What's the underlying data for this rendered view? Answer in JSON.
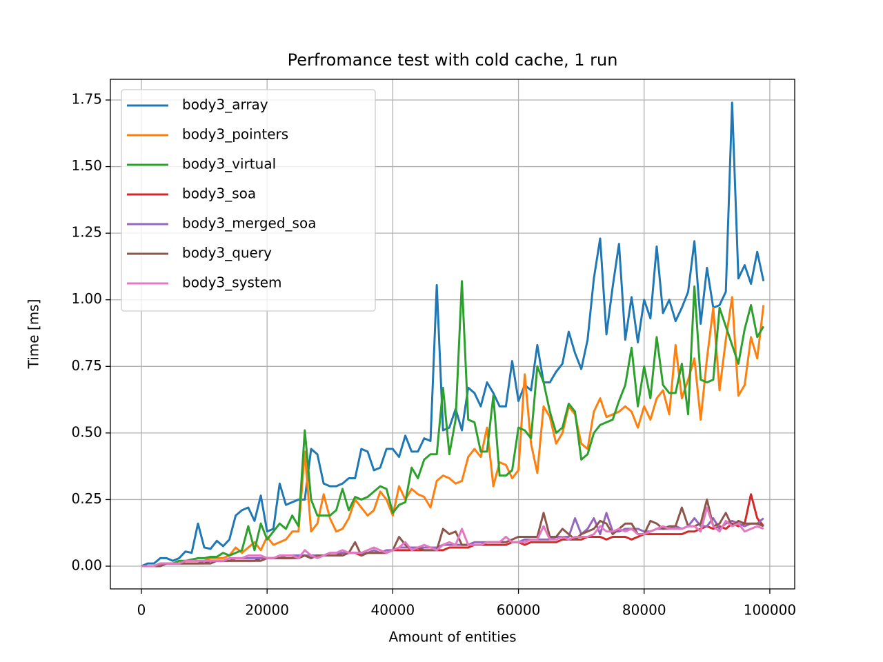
{
  "chart_data": {
    "type": "line",
    "title": "Perfromance test with cold cache, 1 run",
    "x_label": "Amount of entities",
    "y_label": "Time [ms]",
    "x": [
      0,
      1000,
      2000,
      3000,
      4000,
      5000,
      6000,
      7000,
      8000,
      9000,
      10000,
      11000,
      12000,
      13000,
      14000,
      15000,
      16000,
      17000,
      18000,
      19000,
      20000,
      21000,
      22000,
      23000,
      24000,
      25000,
      26000,
      27000,
      28000,
      29000,
      30000,
      31000,
      32000,
      33000,
      34000,
      35000,
      36000,
      37000,
      38000,
      39000,
      40000,
      41000,
      42000,
      43000,
      44000,
      45000,
      46000,
      47000,
      48000,
      49000,
      50000,
      51000,
      52000,
      53000,
      54000,
      55000,
      56000,
      57000,
      58000,
      59000,
      60000,
      61000,
      62000,
      63000,
      64000,
      65000,
      66000,
      67000,
      68000,
      69000,
      70000,
      71000,
      72000,
      73000,
      74000,
      75000,
      76000,
      77000,
      78000,
      79000,
      80000,
      81000,
      82000,
      83000,
      84000,
      85000,
      86000,
      87000,
      88000,
      89000,
      90000,
      91000,
      92000,
      93000,
      94000,
      95000,
      96000,
      97000,
      98000,
      99000
    ],
    "series": [
      {
        "name": "body3_array",
        "color": "#1f77b4",
        "values": [
          0,
          0.01,
          0.01,
          0.03,
          0.03,
          0.02,
          0.03,
          0.055,
          0.05,
          0.16,
          0.07,
          0.065,
          0.095,
          0.075,
          0.1,
          0.19,
          0.21,
          0.22,
          0.17,
          0.265,
          0.13,
          0.14,
          0.31,
          0.23,
          0.24,
          0.25,
          0.25,
          0.44,
          0.42,
          0.31,
          0.3,
          0.3,
          0.31,
          0.33,
          0.33,
          0.44,
          0.43,
          0.36,
          0.37,
          0.44,
          0.44,
          0.41,
          0.49,
          0.43,
          0.43,
          0.48,
          0.47,
          1.055,
          0.51,
          0.52,
          0.59,
          0.51,
          0.67,
          0.65,
          0.6,
          0.69,
          0.65,
          0.6,
          0.6,
          0.77,
          0.62,
          0.68,
          0.66,
          0.83,
          0.69,
          0.69,
          0.73,
          0.76,
          0.88,
          0.8,
          0.74,
          0.85,
          1.08,
          1.23,
          0.87,
          1.05,
          1.21,
          0.85,
          1.01,
          0.84,
          1.0,
          0.93,
          1.2,
          0.95,
          1.0,
          0.92,
          0.97,
          1.03,
          1.22,
          0.91,
          1.12,
          0.97,
          0.98,
          1.03,
          1.74,
          1.08,
          1.13,
          1.06,
          1.18,
          1.07
        ]
      },
      {
        "name": "body3_pointers",
        "color": "#ff7f0e",
        "values": [
          0,
          0,
          0,
          0.01,
          0.01,
          0.01,
          0.01,
          0.02,
          0.02,
          0.02,
          0.02,
          0.03,
          0.03,
          0.03,
          0.04,
          0.07,
          0.05,
          0.07,
          0.09,
          0.06,
          0.11,
          0.08,
          0.09,
          0.1,
          0.13,
          0.13,
          0.43,
          0.13,
          0.16,
          0.27,
          0.18,
          0.13,
          0.14,
          0.18,
          0.25,
          0.22,
          0.19,
          0.21,
          0.28,
          0.25,
          0.19,
          0.3,
          0.25,
          0.29,
          0.27,
          0.26,
          0.22,
          0.32,
          0.34,
          0.33,
          0.31,
          0.32,
          0.41,
          0.44,
          0.41,
          0.52,
          0.3,
          0.39,
          0.38,
          0.33,
          0.36,
          0.72,
          0.46,
          0.35,
          0.6,
          0.56,
          0.46,
          0.5,
          0.6,
          0.57,
          0.46,
          0.44,
          0.58,
          0.63,
          0.56,
          0.57,
          0.58,
          0.6,
          0.58,
          0.52,
          0.6,
          0.55,
          0.63,
          0.66,
          0.57,
          0.83,
          0.63,
          0.7,
          0.78,
          0.55,
          0.78,
          0.97,
          0.66,
          0.85,
          1.01,
          0.64,
          0.68,
          0.86,
          0.78,
          0.98
        ]
      },
      {
        "name": "body3_virtual",
        "color": "#2ca02c",
        "values": [
          0,
          0,
          0,
          0.01,
          0.01,
          0.01,
          0.02,
          0.02,
          0.025,
          0.03,
          0.03,
          0.035,
          0.035,
          0.05,
          0.04,
          0.05,
          0.06,
          0.15,
          0.06,
          0.16,
          0.1,
          0.13,
          0.16,
          0.14,
          0.19,
          0.15,
          0.51,
          0.25,
          0.19,
          0.19,
          0.19,
          0.21,
          0.29,
          0.21,
          0.26,
          0.25,
          0.26,
          0.28,
          0.3,
          0.29,
          0.2,
          0.23,
          0.24,
          0.37,
          0.33,
          0.4,
          0.42,
          0.42,
          0.67,
          0.42,
          0.55,
          1.07,
          0.55,
          0.54,
          0.43,
          0.43,
          0.64,
          0.34,
          0.34,
          0.36,
          0.52,
          0.51,
          0.48,
          0.75,
          0.69,
          0.58,
          0.5,
          0.52,
          0.61,
          0.58,
          0.4,
          0.42,
          0.5,
          0.53,
          0.54,
          0.55,
          0.62,
          0.68,
          0.82,
          0.6,
          0.75,
          0.63,
          0.86,
          0.68,
          0.65,
          0.65,
          0.76,
          0.57,
          1.05,
          0.7,
          0.69,
          0.7,
          0.97,
          0.9,
          0.83,
          0.76,
          0.89,
          0.98,
          0.86,
          0.9
        ]
      },
      {
        "name": "body3_soa",
        "color": "#d62728",
        "values": [
          0,
          0,
          0,
          0.01,
          0.01,
          0.01,
          0.01,
          0.01,
          0.01,
          0.01,
          0.01,
          0.02,
          0.02,
          0.02,
          0.02,
          0.02,
          0.02,
          0.02,
          0.02,
          0.03,
          0.03,
          0.03,
          0.03,
          0.03,
          0.03,
          0.04,
          0.04,
          0.03,
          0.04,
          0.04,
          0.04,
          0.04,
          0.05,
          0.05,
          0.05,
          0.04,
          0.05,
          0.05,
          0.05,
          0.05,
          0.06,
          0.06,
          0.06,
          0.06,
          0.06,
          0.06,
          0.06,
          0.06,
          0.06,
          0.07,
          0.07,
          0.07,
          0.07,
          0.08,
          0.08,
          0.08,
          0.08,
          0.08,
          0.08,
          0.09,
          0.09,
          0.08,
          0.09,
          0.09,
          0.09,
          0.09,
          0.09,
          0.1,
          0.1,
          0.1,
          0.1,
          0.11,
          0.11,
          0.11,
          0.1,
          0.11,
          0.11,
          0.11,
          0.1,
          0.11,
          0.12,
          0.12,
          0.12,
          0.12,
          0.12,
          0.12,
          0.12,
          0.13,
          0.13,
          0.14,
          0.15,
          0.14,
          0.15,
          0.14,
          0.16,
          0.15,
          0.16,
          0.27,
          0.18,
          0.15
        ]
      },
      {
        "name": "body3_merged_soa",
        "color": "#9467bd",
        "values": [
          0,
          0,
          0,
          0.01,
          0.01,
          0.01,
          0.01,
          0.01,
          0.01,
          0.01,
          0.02,
          0.02,
          0.02,
          0.02,
          0.02,
          0.03,
          0.03,
          0.03,
          0.03,
          0.03,
          0.03,
          0.03,
          0.03,
          0.04,
          0.04,
          0.04,
          0.04,
          0.04,
          0.04,
          0.04,
          0.05,
          0.05,
          0.05,
          0.05,
          0.05,
          0.05,
          0.05,
          0.06,
          0.05,
          0.06,
          0.06,
          0.07,
          0.07,
          0.07,
          0.07,
          0.07,
          0.07,
          0.07,
          0.08,
          0.08,
          0.08,
          0.08,
          0.08,
          0.09,
          0.09,
          0.09,
          0.09,
          0.09,
          0.11,
          0.09,
          0.09,
          0.1,
          0.1,
          0.1,
          0.1,
          0.1,
          0.11,
          0.11,
          0.11,
          0.18,
          0.12,
          0.14,
          0.18,
          0.12,
          0.2,
          0.13,
          0.13,
          0.14,
          0.14,
          0.14,
          0.13,
          0.13,
          0.14,
          0.14,
          0.14,
          0.15,
          0.14,
          0.15,
          0.18,
          0.15,
          0.15,
          0.18,
          0.14,
          0.16,
          0.17,
          0.16,
          0.15,
          0.16,
          0.16,
          0.18
        ]
      },
      {
        "name": "body3_query",
        "color": "#8c564b",
        "values": [
          0,
          0,
          0,
          0,
          0.01,
          0.01,
          0.01,
          0.01,
          0.01,
          0.01,
          0.01,
          0.01,
          0.02,
          0.02,
          0.02,
          0.02,
          0.02,
          0.02,
          0.02,
          0.02,
          0.03,
          0.03,
          0.03,
          0.03,
          0.03,
          0.03,
          0.04,
          0.03,
          0.04,
          0.04,
          0.04,
          0.04,
          0.04,
          0.05,
          0.09,
          0.04,
          0.05,
          0.05,
          0.05,
          0.05,
          0.06,
          0.11,
          0.08,
          0.06,
          0.07,
          0.06,
          0.06,
          0.06,
          0.14,
          0.12,
          0.13,
          0.08,
          0.08,
          0.08,
          0.08,
          0.09,
          0.09,
          0.09,
          0.09,
          0.1,
          0.11,
          0.11,
          0.11,
          0.11,
          0.2,
          0.11,
          0.11,
          0.14,
          0.12,
          0.1,
          0.12,
          0.13,
          0.14,
          0.17,
          0.16,
          0.12,
          0.14,
          0.16,
          0.16,
          0.12,
          0.12,
          0.17,
          0.16,
          0.14,
          0.15,
          0.15,
          0.22,
          0.15,
          0.15,
          0.16,
          0.25,
          0.15,
          0.16,
          0.2,
          0.15,
          0.17,
          0.16,
          0.16,
          0.16,
          0.15
        ]
      },
      {
        "name": "body3_system",
        "color": "#e377c2",
        "values": [
          0,
          0,
          0,
          0.01,
          0.01,
          0.01,
          0.01,
          0.02,
          0.02,
          0.02,
          0.02,
          0.02,
          0.02,
          0.02,
          0.03,
          0.03,
          0.03,
          0.04,
          0.04,
          0.04,
          0.03,
          0.03,
          0.04,
          0.04,
          0.04,
          0.03,
          0.06,
          0.04,
          0.03,
          0.04,
          0.05,
          0.05,
          0.06,
          0.05,
          0.05,
          0.05,
          0.06,
          0.07,
          0.06,
          0.05,
          0.06,
          0.07,
          0.09,
          0.06,
          0.07,
          0.08,
          0.07,
          0.06,
          0.08,
          0.09,
          0.08,
          0.14,
          0.08,
          0.08,
          0.08,
          0.09,
          0.09,
          0.09,
          0.11,
          0.09,
          0.09,
          0.09,
          0.1,
          0.1,
          0.15,
          0.1,
          0.1,
          0.11,
          0.1,
          0.11,
          0.11,
          0.11,
          0.12,
          0.15,
          0.13,
          0.13,
          0.14,
          0.13,
          0.14,
          0.12,
          0.12,
          0.13,
          0.14,
          0.15,
          0.14,
          0.14,
          0.14,
          0.15,
          0.15,
          0.13,
          0.22,
          0.15,
          0.13,
          0.17,
          0.15,
          0.16,
          0.13,
          0.14,
          0.15,
          0.14
        ]
      }
    ],
    "xlim": [
      -4940,
      103960
    ],
    "ylim": [
      -0.0854,
      1.8277
    ],
    "xticks": [
      0,
      20000,
      40000,
      60000,
      80000,
      100000
    ],
    "yticks": [
      {
        "value": 0,
        "label": "0.00"
      },
      {
        "value": 0.25,
        "label": "0.25"
      },
      {
        "value": 0.5,
        "label": "0.50"
      },
      {
        "value": 0.75,
        "label": "0.75"
      },
      {
        "value": 1,
        "label": "1.00"
      },
      {
        "value": 1.25,
        "label": "1.25"
      },
      {
        "value": 1.5,
        "label": "1.50"
      },
      {
        "value": 1.75,
        "label": "1.75"
      }
    ],
    "grid": true,
    "legend": "upper-left"
  }
}
